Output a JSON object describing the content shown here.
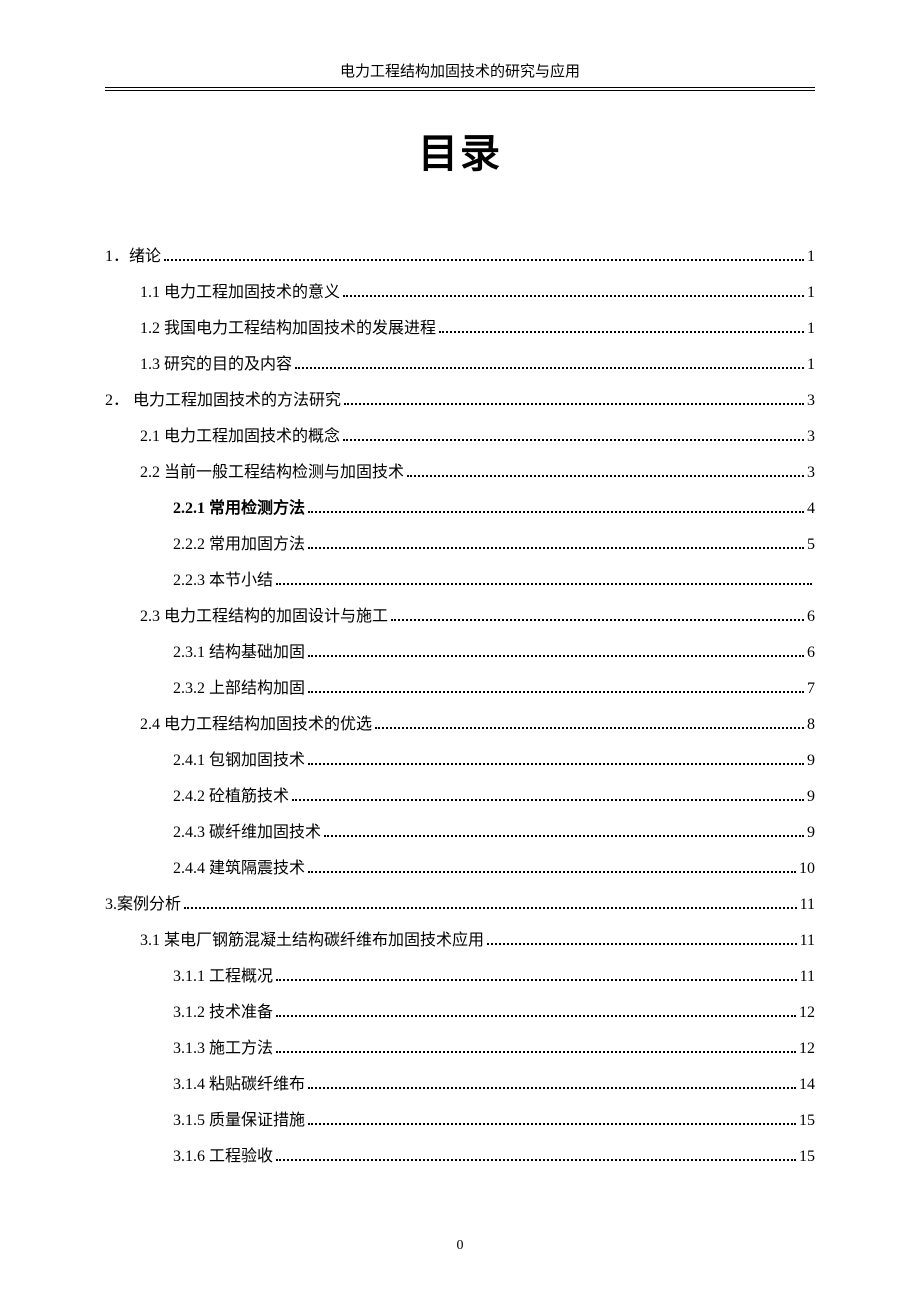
{
  "header": "电力工程结构加固技术的研究与应用",
  "title": "目录",
  "footer": "0",
  "toc": [
    {
      "label": "1．绪论",
      "page": "1",
      "indent": 0,
      "bold": false
    },
    {
      "label": "1.1 电力工程加固技术的意义 ",
      "page": "1",
      "indent": 1,
      "bold": false
    },
    {
      "label": "1.2 我国电力工程结构加固技术的发展进程",
      "page": " 1",
      "indent": 1,
      "bold": false
    },
    {
      "label": "1.3 研究的目的及内容",
      "page": "1",
      "indent": 1,
      "bold": false
    },
    {
      "label": "2． 电力工程加固技术的方法研究",
      "page": "3",
      "indent": 0,
      "bold": false
    },
    {
      "label": "2.1 电力工程加固技术的概念",
      "page": "3",
      "indent": 1,
      "bold": false
    },
    {
      "label": "2.2 当前一般工程结构检测与加固技术",
      "page": "3",
      "indent": 1,
      "bold": false
    },
    {
      "label": "2.2.1 常用检测方法",
      "page": "4",
      "indent": 2,
      "bold": true
    },
    {
      "label": "2.2.2 常用加固方法",
      "page": "5",
      "indent": 2,
      "bold": false
    },
    {
      "label": "2.2.3 本节小结",
      "page": "",
      "indent": 2,
      "bold": false
    },
    {
      "label": "2.3 电力工程结构的加固设计与施工",
      "page": "6",
      "indent": 1,
      "bold": false
    },
    {
      "label": "2.3.1 结构基础加固",
      "page": "6",
      "indent": 2,
      "bold": false
    },
    {
      "label": "2.3.2 上部结构加固",
      "page": "7",
      "indent": 2,
      "bold": false
    },
    {
      "label": "2.4 电力工程结构加固技术的优选",
      "page": "8",
      "indent": 1,
      "bold": false
    },
    {
      "label": "2.4.1 包钢加固技术",
      "page": "9",
      "indent": 2,
      "bold": false
    },
    {
      "label": "2.4.2 砼植筋技术",
      "page": "9",
      "indent": 2,
      "bold": false
    },
    {
      "label": "2.4.3 碳纤维加固技术",
      "page": "9",
      "indent": 2,
      "bold": false
    },
    {
      "label": "2.4.4 建筑隔震技术",
      "page": "10",
      "indent": 2,
      "bold": false
    },
    {
      "label": "3.案例分析",
      "page": "11",
      "indent": 0,
      "bold": false
    },
    {
      "label": "3.1 某电厂钢筋混凝土结构碳纤维布加固技术应用",
      "page": "11",
      "indent": 1,
      "bold": false
    },
    {
      "label": "3.1.1 工程概况",
      "page": "11",
      "indent": 2,
      "bold": false
    },
    {
      "label": "3.1.2 技术准备",
      "page": "12",
      "indent": 2,
      "bold": false
    },
    {
      "label": "3.1.3 施工方法",
      "page": "12",
      "indent": 2,
      "bold": false
    },
    {
      "label": "3.1.4 粘贴碳纤维布",
      "page": "14",
      "indent": 2,
      "bold": false
    },
    {
      "label": "3.1.5 质量保证措施",
      "page": "15",
      "indent": 2,
      "bold": false
    },
    {
      "label": "3.1.6 工程验收",
      "page": "15",
      "indent": 2,
      "bold": false
    }
  ]
}
